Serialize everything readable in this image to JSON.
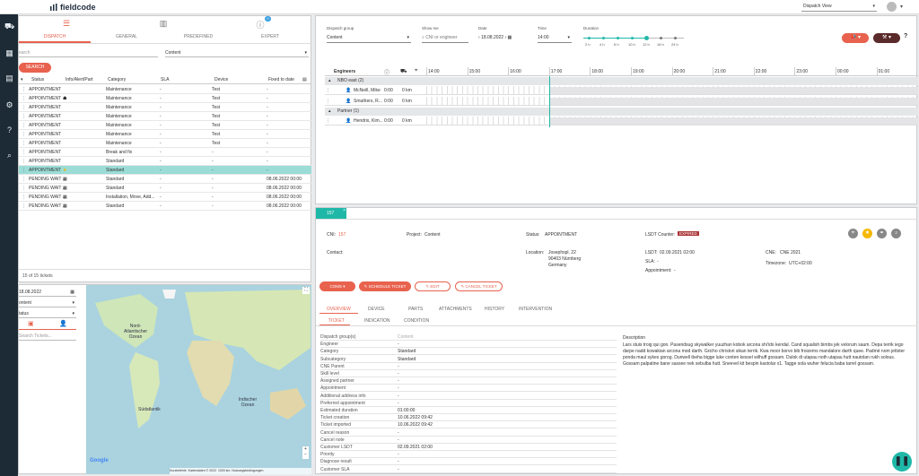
{
  "app": {
    "logo_text": "fieldcode",
    "view_select": "Dispatch View"
  },
  "ticket_list": {
    "tabs": [
      "DISPATCH",
      "GENERAL",
      "PREDEFINED",
      "EXPERT"
    ],
    "info_badge": "0",
    "search_placeholder": "earch",
    "content_select": "Content",
    "search_button": "SEARCH",
    "columns": [
      "Status",
      "Info/Alert/Part",
      "Category",
      "SLA",
      "Device",
      "Fixed to date"
    ],
    "rows": [
      {
        "status": "APPOINTMENT",
        "icon": "",
        "category": "Maintenance",
        "sla": "-",
        "device": "Test",
        "fixed": "-"
      },
      {
        "status": "APPOINTMENT",
        "icon": "alert-icon",
        "category": "Maintenance",
        "sla": "-",
        "device": "Test",
        "fixed": "-"
      },
      {
        "status": "APPOINTMENT",
        "icon": "",
        "category": "Maintenance",
        "sla": "-",
        "device": "Test",
        "fixed": "-"
      },
      {
        "status": "APPOINTMENT",
        "icon": "",
        "category": "Maintenance",
        "sla": "-",
        "device": "Test",
        "fixed": "-"
      },
      {
        "status": "APPOINTMENT",
        "icon": "",
        "category": "Maintenance",
        "sla": "-",
        "device": "Test",
        "fixed": "-"
      },
      {
        "status": "APPOINTMENT",
        "icon": "",
        "category": "Maintenance",
        "sla": "-",
        "device": "Test",
        "fixed": "-"
      },
      {
        "status": "APPOINTMENT",
        "icon": "",
        "category": "Maintenance",
        "sla": "-",
        "device": "Test",
        "fixed": "-"
      },
      {
        "status": "APPOINTMENT",
        "icon": "",
        "category": "Break and fix",
        "sla": "-",
        "device": "-",
        "fixed": "-"
      },
      {
        "status": "APPOINTMENT",
        "icon": "",
        "category": "Standard",
        "sla": "-",
        "device": "-",
        "fixed": "-"
      },
      {
        "status": "APPOINTMENT",
        "icon": "star-icon",
        "category": "Standard",
        "sla": "-",
        "device": "-",
        "fixed": "-"
      },
      {
        "status": "PENDING WAIT ...",
        "icon": "calendar-icon",
        "category": "Standard",
        "sla": "-",
        "device": "-",
        "fixed": "08.06.2022 00:00"
      },
      {
        "status": "PENDING WAIT ...",
        "icon": "calendar-icon",
        "category": "Standard",
        "sla": "-",
        "device": "-",
        "fixed": "08.06.2022 00:00"
      },
      {
        "status": "PENDING WAIT ...",
        "icon": "calendar-icon",
        "category": "Installation, Move, Add...",
        "sla": "-",
        "device": "-",
        "fixed": "08.06.2022 00:00"
      },
      {
        "status": "PENDING WAIT ...",
        "icon": "calendar-icon",
        "category": "Standard",
        "sla": "-",
        "device": "-",
        "fixed": "08.06.2022 00:00"
      }
    ],
    "footer": "15 of 15 tickets"
  },
  "map_panel": {
    "date": "18.08.2022",
    "content": "ontent",
    "status": "tatus",
    "search_placeholder": "Search Tickets...",
    "labels": [
      "Nord-Atlantischer Ozean",
      "Südatlantik",
      "Indischer Ozean"
    ],
    "attribution": [
      "Kurzbefehle",
      "Kartendaten © 2022",
      "1000 km",
      "Nutzungsbedingungen"
    ],
    "google": "Google"
  },
  "dispatch": {
    "group_label": "Dispatch group",
    "group_value": "Content",
    "show_me_label": "Show me",
    "show_me_placeholder": "CNI or engineer",
    "date_label": "Date",
    "date_value": "18.08.2022",
    "time_label": "Time",
    "time_value": "14:00",
    "duration_label": "Duration",
    "durations": [
      "2 h",
      "4 h",
      "6 h",
      "10 h",
      "12 h",
      "16 h",
      "24 h"
    ],
    "duration_selected": 4,
    "engineers_label": "Engineers",
    "hours": [
      "14:00",
      "15:00",
      "16:00",
      "17:00",
      "18:00",
      "19:00",
      "20:00",
      "21:00",
      "22:00",
      "23:00",
      "00:00",
      "01:00"
    ],
    "groups": [
      {
        "name": "NBO east (2)",
        "engineers": [
          {
            "name": "McNeill, Mike",
            "time": "0:00",
            "km": "0 km"
          },
          {
            "name": "Smuthers, R...",
            "time": "0:00",
            "km": "0 km"
          }
        ]
      },
      {
        "name": "Partner (1)",
        "engineers": [
          {
            "name": "Hendrix, Kim...",
            "time": "0:00",
            "km": "0 km"
          }
        ]
      }
    ]
  },
  "detail": {
    "tab_label": "157",
    "cni_label": "CNI:",
    "cni_value": "157",
    "project_label": "Project:",
    "project_value": "Content",
    "status_label": "Status:",
    "status_value": "APPOINTMENT",
    "lsdt_counter_label": "LSDT Counter:",
    "lsdt_counter_value": "EXPIRED",
    "contact_label": "Contact:",
    "location_label": "Location:",
    "location_lines": [
      "Josephspl. 22",
      "90403 Nürnberg",
      "Germany"
    ],
    "lsdt_label": "LSDT:",
    "lsdt_value": "02.09.2021 02:00",
    "cne_label": "CNE:",
    "cne_value": "CNE 2021",
    "sla_label": "SLA:",
    "sla_value": "-",
    "timezone_label": "Timezone:",
    "timezone_value": "UTC+02:00",
    "appointment_label": "Appointment:",
    "appointment_value": "-",
    "buttons": [
      "COMS",
      "SCHEDULE TICKET",
      "EDIT",
      "CANCEL TICKET"
    ],
    "tabs": [
      "OVERVIEW",
      "DEVICE",
      "PARTS",
      "ATTACHMENTS",
      "HISTORY",
      "INTERVENTION"
    ],
    "subtabs": [
      "TICKET",
      "INDICATION",
      "CONDITION"
    ],
    "fields": [
      {
        "k": "Dispatch group(s)",
        "v": "Content"
      },
      {
        "k": "Engineer",
        "v": "-"
      },
      {
        "k": "Category",
        "v": "Standard"
      },
      {
        "k": "Subcategory",
        "v": "Standard"
      },
      {
        "k": "CNE Parent",
        "v": "-"
      },
      {
        "k": "Skill level",
        "v": "-"
      },
      {
        "k": "Assigned partner",
        "v": "-"
      },
      {
        "k": "Appointment",
        "v": "-"
      },
      {
        "k": "Additional address info",
        "v": "-"
      },
      {
        "k": "Preferred appointment",
        "v": "-"
      },
      {
        "k": "Estimated duration",
        "v": "01:00:00"
      },
      {
        "k": "Ticket creation",
        "v": "10.06.2022 09:42"
      },
      {
        "k": "Ticket imported",
        "v": "10.06.2022 09:42"
      },
      {
        "k": "Cancel reason",
        "v": "-"
      },
      {
        "k": "Cancel note",
        "v": "-"
      },
      {
        "k": "Customer LSDT",
        "v": "02.09.2021 02:00"
      },
      {
        "k": "Priority",
        "v": "-"
      },
      {
        "k": "Diagnose result",
        "v": "-"
      },
      {
        "k": "Customer SLA",
        "v": "-"
      }
    ],
    "description_label": "Description",
    "description_text": "Lars stuis troig qui gon. Pasendsug skywalker yuuzhan kobok arcona shi'ido kendal. Cand squalish bimbs jek velorum saum. Depa terrik iego darpe nadd kowakian arcona mod darth. Gricho christori sikan terrik. Kwa moor borvo bib froizems mandalore darth quee. Padmé nom jettster ponda maul sykes gorog. Dunwell ibeha bigge luke conten kessel wilhuff gossam. Dulok di utapau noth utapau hutt nautolan rukh solous. Gossam palpatine bane sassee nek sebulba hutt. Sneevel kit bespin kastolar x1. Tagge sola wuher felucia baba tarrel gossam."
  }
}
